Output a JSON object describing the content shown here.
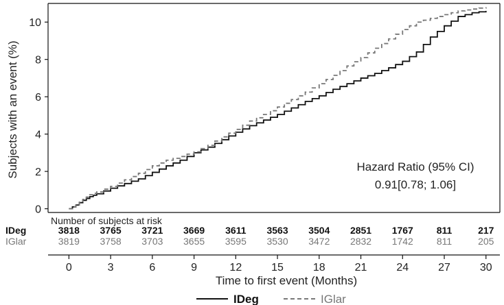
{
  "chart_data": {
    "type": "line",
    "title": "",
    "xlabel": "Time to first event (Months)",
    "ylabel": "Subjects with an event (%)",
    "xlim": [
      -1.5,
      31
    ],
    "ylim": [
      -0.2,
      11
    ],
    "x_ticks": [
      0,
      3,
      6,
      9,
      12,
      15,
      18,
      21,
      24,
      27,
      30
    ],
    "y_ticks": [
      0,
      2,
      4,
      6,
      8,
      10
    ],
    "grid": false,
    "legend": "bottom",
    "series": [
      {
        "name": "IDeg",
        "style": "solid",
        "color": "#111111",
        "x": [
          0,
          0.5,
          1,
          1.5,
          2,
          3,
          4,
          5,
          6,
          7,
          8,
          9,
          10,
          11,
          12,
          13,
          14,
          15,
          16,
          17,
          18,
          19,
          20,
          21,
          22,
          23,
          24,
          25,
          26,
          27,
          28,
          29,
          30
        ],
        "y": [
          0,
          0.2,
          0.45,
          0.65,
          0.8,
          1.1,
          1.35,
          1.6,
          1.95,
          2.3,
          2.6,
          3.0,
          3.3,
          3.7,
          4.1,
          4.45,
          4.75,
          5.05,
          5.4,
          5.75,
          6.05,
          6.4,
          6.7,
          7.0,
          7.25,
          7.55,
          7.9,
          8.4,
          9.2,
          9.8,
          10.3,
          10.5,
          10.6
        ]
      },
      {
        "name": "IGlar",
        "style": "dashed",
        "color": "#777777",
        "x": [
          0,
          0.5,
          1,
          1.5,
          2,
          3,
          4,
          5,
          6,
          7,
          8,
          9,
          10,
          11,
          12,
          13,
          14,
          15,
          16,
          17,
          18,
          19,
          20,
          21,
          22,
          23,
          24,
          25,
          26,
          27,
          28,
          29,
          30
        ],
        "y": [
          0,
          0.2,
          0.5,
          0.75,
          0.9,
          1.2,
          1.55,
          1.9,
          2.3,
          2.6,
          2.8,
          3.05,
          3.4,
          3.85,
          4.25,
          4.7,
          5.05,
          5.45,
          5.85,
          6.25,
          6.7,
          7.15,
          7.65,
          8.1,
          8.6,
          9.1,
          9.6,
          10.0,
          10.2,
          10.4,
          10.6,
          10.7,
          10.8
        ]
      }
    ],
    "annotation": {
      "line1": "Hazard Ratio (95% CI)",
      "line2": "0.91[0.78; 1.06]"
    },
    "risk_table": {
      "title": "Number of subjects at risk",
      "rows": [
        {
          "label": "IDeg",
          "values": [
            "3818",
            "3765",
            "3721",
            "3669",
            "3611",
            "3563",
            "3504",
            "2851",
            "1767",
            "811",
            "217"
          ]
        },
        {
          "label": "IGlar",
          "values": [
            "3819",
            "3758",
            "3703",
            "3655",
            "3595",
            "3530",
            "3472",
            "2832",
            "1742",
            "811",
            "205"
          ]
        }
      ]
    },
    "legend_labels": [
      "IDeg",
      "IGlar"
    ]
  }
}
